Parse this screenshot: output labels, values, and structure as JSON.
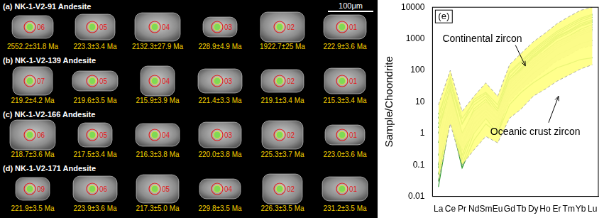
{
  "scale_bar": "100μm",
  "panels": [
    {
      "label": "(a) NK-1-V2-91 Andesite",
      "grains": [
        {
          "spot": "06",
          "age": "2552.2±31.8 Ma"
        },
        {
          "spot": "05",
          "age": "223.3±3.4 Ma"
        },
        {
          "spot": "04",
          "age": "2132.3±27.9 Ma"
        },
        {
          "spot": "03",
          "age": "228.9±4.9 Ma"
        },
        {
          "spot": "02",
          "age": "1922.7±25 Ma"
        },
        {
          "spot": "01",
          "age": "222.9±3.6 Ma"
        }
      ]
    },
    {
      "label": "(b) NK-1-V2-139 Andesite",
      "grains": [
        {
          "spot": "07",
          "age": "219.2±4.2 Ma"
        },
        {
          "spot": "05",
          "age": "219.6±3.5 Ma"
        },
        {
          "spot": "04",
          "age": "215.9±3.9 Ma"
        },
        {
          "spot": "03",
          "age": "221.4±3.3 Ma"
        },
        {
          "spot": "02",
          "age": "219.1±3.4 Ma"
        },
        {
          "spot": "01",
          "age": "215.3±3.4 Ma"
        }
      ]
    },
    {
      "label": "(c) NK-1-V2-166 Andesite",
      "grains": [
        {
          "spot": "06",
          "age": "218.7±3.6 Ma"
        },
        {
          "spot": "05",
          "age": "217.5±3.4 Ma"
        },
        {
          "spot": "04",
          "age": "216.3±3.8 Ma"
        },
        {
          "spot": "03",
          "age": "220.0±3.8 Ma"
        },
        {
          "spot": "02",
          "age": "225.3±3.7 Ma"
        },
        {
          "spot": "01",
          "age": "223.0±3.6 Ma"
        }
      ]
    },
    {
      "label": "(d) NK-1-V2-171 Andesite",
      "grains": [
        {
          "spot": "09",
          "age": "221.9±3.5 Ma"
        },
        {
          "spot": "06",
          "age": "223.9±3.6 Ma"
        },
        {
          "spot": "05",
          "age": "217.3±5.0 Ma"
        },
        {
          "spot": "04",
          "age": "229.8±3.5 Ma"
        },
        {
          "spot": "02",
          "age": "226.3±3.5 Ma"
        },
        {
          "spot": "01",
          "age": "231.2±3.5 Ma"
        }
      ]
    }
  ],
  "chart_data": {
    "type": "line",
    "panel_label": "(e)",
    "y_label": "Sample/Choondrite",
    "categories": [
      "La",
      "Ce",
      "Pr",
      "Nd",
      "Sm",
      "Eu",
      "Gd",
      "Tb",
      "Dy",
      "Ho",
      "Er",
      "Tm",
      "Yb",
      "Lu"
    ],
    "log": "y",
    "ylim": [
      0.01,
      10000
    ],
    "yticks": [
      0.01,
      0.1,
      1,
      10,
      100,
      1000,
      10000
    ],
    "grid": false,
    "fields": [
      {
        "name": "Continental zircon",
        "color": "#ffff80",
        "line_style": "dashed",
        "upper": [
          8,
          100,
          5,
          15,
          40,
          15,
          150,
          350,
          800,
          1500,
          3000,
          5000,
          8000,
          10000
        ],
        "lower": [
          0.03,
          2,
          0.1,
          0.3,
          0.8,
          0.5,
          3,
          6,
          15,
          25,
          45,
          70,
          110,
          150
        ]
      },
      {
        "name": "Oceanic crust zircon",
        "color": "#d3d3d3",
        "line_style": "dashed",
        "upper": [
          1,
          20,
          1,
          5,
          10,
          5,
          50,
          100,
          250,
          400,
          800,
          1200,
          1800,
          2500
        ],
        "lower": [
          0.1,
          2,
          0.3,
          1,
          3,
          1.5,
          10,
          25,
          50,
          100,
          200,
          300,
          500,
          600
        ]
      }
    ],
    "series": [
      {
        "color": "#2e9a2e",
        "values": [
          0.03,
          8,
          0.15,
          1.5,
          4,
          1.5,
          20,
          50,
          120,
          250,
          500,
          800,
          1300,
          1800
        ]
      },
      {
        "color": "#2e9a2e",
        "values": [
          0.1,
          15,
          0.3,
          3,
          7,
          2.5,
          35,
          90,
          200,
          400,
          800,
          1200,
          2000,
          2800
        ]
      },
      {
        "color": "#2e9a2e",
        "values": [
          1,
          30,
          1,
          5,
          10,
          4,
          50,
          120,
          300,
          600,
          1200,
          1800,
          3000,
          4000
        ]
      },
      {
        "color": "#2e9a2e",
        "values": [
          4,
          50,
          3,
          10,
          18,
          6,
          80,
          180,
          400,
          800,
          1500,
          2500,
          4000,
          5500
        ]
      },
      {
        "color": "#2e9a2e",
        "values": [
          0.05,
          5,
          0.1,
          1,
          3,
          1,
          15,
          35,
          80,
          150,
          300,
          450,
          700,
          900
        ]
      },
      {
        "color": "#2e9a2e",
        "values": [
          0.5,
          20,
          0.5,
          4,
          8,
          3,
          40,
          100,
          250,
          500,
          1000,
          1500,
          2500,
          3300
        ]
      },
      {
        "color": "#2e9a2e",
        "values": [
          2,
          40,
          2,
          8,
          15,
          5,
          60,
          150,
          350,
          700,
          1300,
          2200,
          3500,
          4800
        ]
      },
      {
        "color": "#2e9a2e",
        "values": [
          0.02,
          3,
          0.08,
          0.6,
          2,
          1,
          8,
          20,
          40,
          70,
          120,
          160,
          220,
          250
        ]
      },
      {
        "color": "#2e9a2e",
        "values": [
          0.2,
          10,
          0.2,
          2,
          5,
          2,
          25,
          60,
          150,
          300,
          600,
          900,
          1500,
          2000
        ]
      },
      {
        "color": "#2e9a2e",
        "values": [
          3,
          60,
          2,
          12,
          20,
          8,
          90,
          200,
          450,
          900,
          1700,
          2800,
          4500,
          6000
        ]
      },
      {
        "color": "#2e9a2e",
        "values": [
          0.08,
          12,
          0.4,
          3,
          6,
          3,
          30,
          70,
          170,
          350,
          700,
          1000,
          1700,
          2300
        ]
      },
      {
        "color": "#2e9a2e",
        "values": [
          1.5,
          25,
          0.8,
          6,
          12,
          4,
          45,
          110,
          270,
          550,
          1100,
          1700,
          2700,
          3600
        ]
      }
    ]
  }
}
